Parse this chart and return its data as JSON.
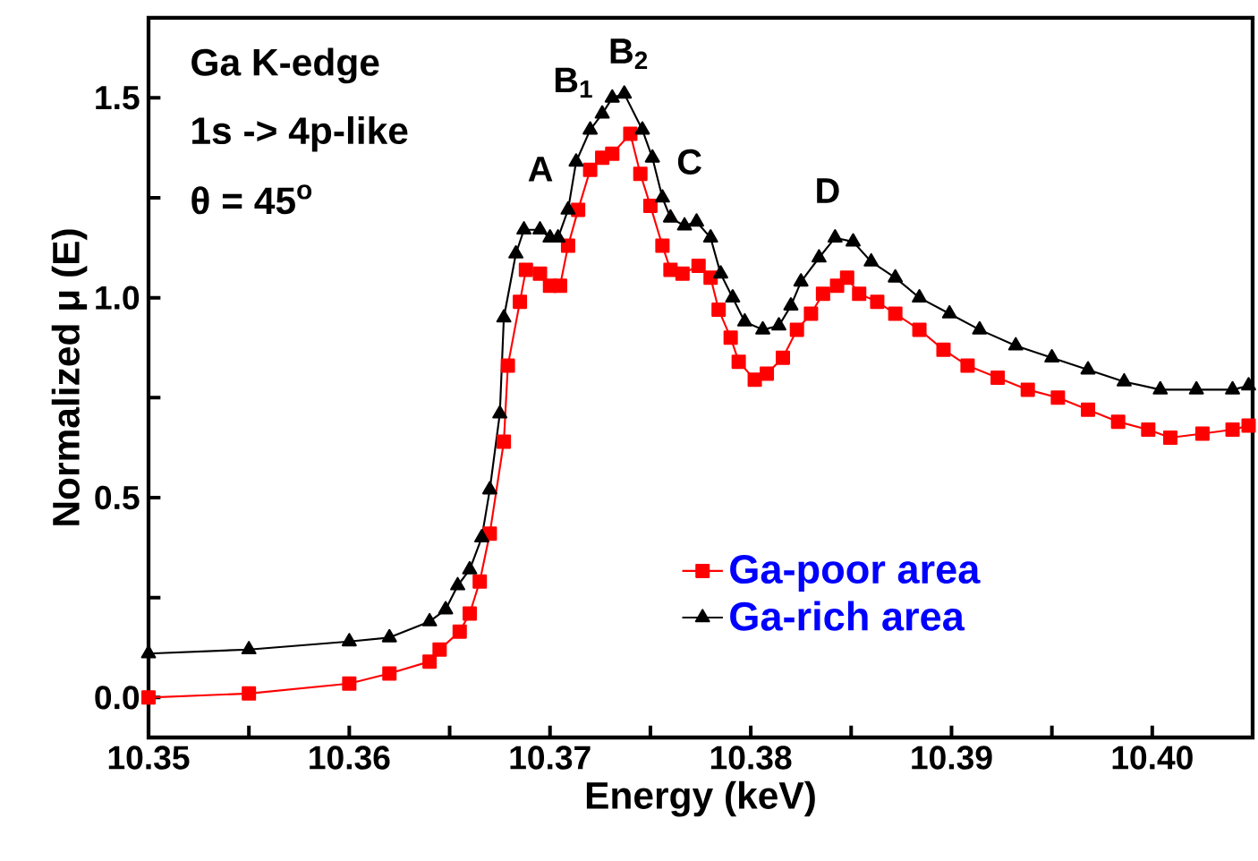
{
  "chart_data": {
    "type": "line",
    "xlabel": "Energy (keV)",
    "ylabel": "Normalized μ (E)",
    "xlim": [
      10.35,
      10.405
    ],
    "ylim": [
      -0.1,
      1.7
    ],
    "xticks": [
      10.35,
      {
        "value": 10.355,
        "label": null
      },
      10.36,
      {
        "value": 10.365,
        "label": null
      },
      10.37,
      {
        "value": 10.375,
        "label": null
      },
      10.38,
      {
        "value": 10.385,
        "label": null
      },
      10.39,
      {
        "value": 10.395,
        "label": null
      },
      {
        "value": 10.4,
        "label": "10.40"
      }
    ],
    "yticks": [
      {
        "value": 0,
        "label": "0.0"
      },
      {
        "value": 0.25,
        "label": null
      },
      0.5,
      {
        "value": 0.75,
        "label": null
      },
      {
        "value": 1,
        "label": "1.0"
      },
      {
        "value": 1.25,
        "label": null
      },
      1.5
    ],
    "legend": "bottom",
    "grid": false,
    "series": [
      {
        "name": "Ga-poor area",
        "color": "#ff0000",
        "marker": "square",
        "x": [
          10.35,
          10.355,
          10.36,
          10.362,
          10.364,
          10.3645,
          10.3655,
          10.366,
          10.3665,
          10.367,
          10.3677,
          10.3679,
          10.3685,
          10.3688,
          10.3695,
          10.37,
          10.3705,
          10.3709,
          10.3714,
          10.372,
          10.3726,
          10.3731,
          10.374,
          10.3745,
          10.375,
          10.3756,
          10.376,
          10.3766,
          10.3774,
          10.378,
          10.3784,
          10.379,
          10.3794,
          10.3802,
          10.3808,
          10.3816,
          10.3823,
          10.383,
          10.3836,
          10.3843,
          10.3848,
          10.3854,
          10.3863,
          10.3872,
          10.3884,
          10.3896,
          10.3908,
          10.3923,
          10.3938,
          10.3953,
          10.3968,
          10.3983,
          10.3998,
          10.4009,
          10.4025,
          10.404,
          10.4048
        ],
        "values": [
          0.0,
          0.01,
          0.035,
          0.06,
          0.09,
          0.12,
          0.165,
          0.21,
          0.29,
          0.41,
          0.64,
          0.83,
          0.99,
          1.07,
          1.06,
          1.03,
          1.03,
          1.13,
          1.22,
          1.32,
          1.35,
          1.36,
          1.41,
          1.31,
          1.23,
          1.13,
          1.07,
          1.06,
          1.08,
          1.05,
          0.97,
          0.9,
          0.84,
          0.795,
          0.81,
          0.85,
          0.92,
          0.96,
          1.01,
          1.03,
          1.05,
          1.01,
          0.99,
          0.96,
          0.92,
          0.87,
          0.83,
          0.8,
          0.77,
          0.75,
          0.72,
          0.69,
          0.67,
          0.65,
          0.66,
          0.67,
          0.68
        ]
      },
      {
        "name": "Ga-rich area",
        "color": "#000000",
        "marker": "triangle",
        "x": [
          10.35,
          10.355,
          10.36,
          10.362,
          10.364,
          10.3648,
          10.3654,
          10.366,
          10.3666,
          10.367,
          10.3675,
          10.3677,
          10.3683,
          10.3687,
          10.3695,
          10.37,
          10.3704,
          10.3709,
          10.3713,
          10.372,
          10.3726,
          10.3731,
          10.3737,
          10.3746,
          10.3751,
          10.3756,
          10.376,
          10.3767,
          10.3773,
          10.378,
          10.3785,
          10.3791,
          10.3797,
          10.3806,
          10.3814,
          10.382,
          10.3825,
          10.3834,
          10.3842,
          10.3851,
          10.386,
          10.3872,
          10.3884,
          10.3899,
          10.3914,
          10.3932,
          10.395,
          10.3968,
          10.3986,
          10.4004,
          10.4022,
          10.404,
          10.4048
        ],
        "values": [
          0.11,
          0.12,
          0.14,
          0.15,
          0.19,
          0.22,
          0.28,
          0.32,
          0.4,
          0.52,
          0.71,
          0.95,
          1.11,
          1.17,
          1.17,
          1.15,
          1.15,
          1.22,
          1.34,
          1.42,
          1.46,
          1.5,
          1.51,
          1.42,
          1.35,
          1.25,
          1.2,
          1.18,
          1.19,
          1.15,
          1.06,
          1.0,
          0.94,
          0.92,
          0.93,
          0.98,
          1.04,
          1.1,
          1.15,
          1.14,
          1.09,
          1.05,
          1.0,
          0.96,
          0.92,
          0.88,
          0.85,
          0.82,
          0.79,
          0.77,
          0.77,
          0.77,
          0.78
        ]
      }
    ],
    "annotations": [
      "Ga K-edge",
      "1s -> 4p-like",
      "θ = 45$^{o}$",
      "A",
      "B$_{1}$",
      "B$_{2}$",
      "C",
      "D"
    ]
  }
}
